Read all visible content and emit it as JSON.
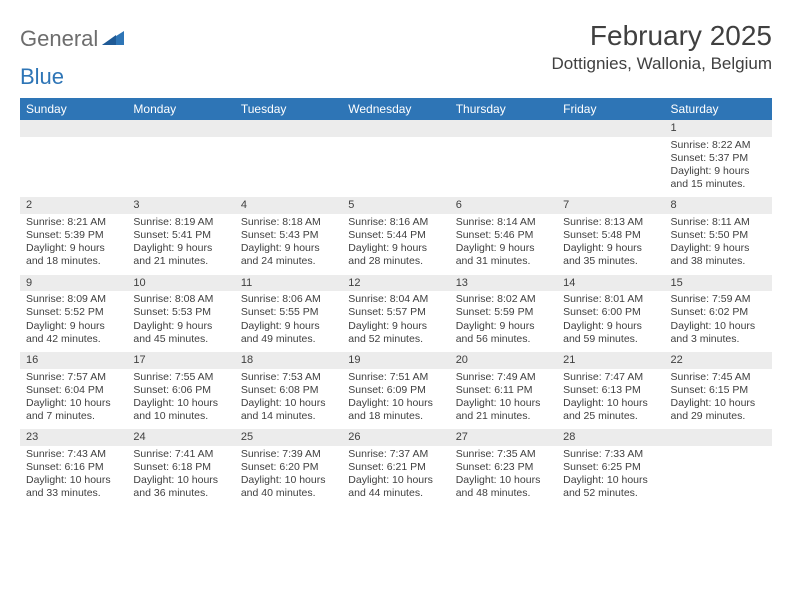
{
  "logo": {
    "general": "General",
    "blue": "Blue",
    "mark_color": "#2e75b6"
  },
  "title": "February 2025",
  "location": "Dottignies, Wallonia, Belgium",
  "colors": {
    "header_bg": "#2e75b6",
    "header_fg": "#ffffff",
    "band_bg": "#ececec",
    "text": "#404040",
    "page_bg": "#ffffff"
  },
  "daysOfWeek": [
    "Sunday",
    "Monday",
    "Tuesday",
    "Wednesday",
    "Thursday",
    "Friday",
    "Saturday"
  ],
  "weeks": [
    [
      {
        "n": "",
        "sr": "",
        "ss": "",
        "dl": ""
      },
      {
        "n": "",
        "sr": "",
        "ss": "",
        "dl": ""
      },
      {
        "n": "",
        "sr": "",
        "ss": "",
        "dl": ""
      },
      {
        "n": "",
        "sr": "",
        "ss": "",
        "dl": ""
      },
      {
        "n": "",
        "sr": "",
        "ss": "",
        "dl": ""
      },
      {
        "n": "",
        "sr": "",
        "ss": "",
        "dl": ""
      },
      {
        "n": "1",
        "sr": "8:22 AM",
        "ss": "5:37 PM",
        "dl": "9 hours and 15 minutes."
      }
    ],
    [
      {
        "n": "2",
        "sr": "8:21 AM",
        "ss": "5:39 PM",
        "dl": "9 hours and 18 minutes."
      },
      {
        "n": "3",
        "sr": "8:19 AM",
        "ss": "5:41 PM",
        "dl": "9 hours and 21 minutes."
      },
      {
        "n": "4",
        "sr": "8:18 AM",
        "ss": "5:43 PM",
        "dl": "9 hours and 24 minutes."
      },
      {
        "n": "5",
        "sr": "8:16 AM",
        "ss": "5:44 PM",
        "dl": "9 hours and 28 minutes."
      },
      {
        "n": "6",
        "sr": "8:14 AM",
        "ss": "5:46 PM",
        "dl": "9 hours and 31 minutes."
      },
      {
        "n": "7",
        "sr": "8:13 AM",
        "ss": "5:48 PM",
        "dl": "9 hours and 35 minutes."
      },
      {
        "n": "8",
        "sr": "8:11 AM",
        "ss": "5:50 PM",
        "dl": "9 hours and 38 minutes."
      }
    ],
    [
      {
        "n": "9",
        "sr": "8:09 AM",
        "ss": "5:52 PM",
        "dl": "9 hours and 42 minutes."
      },
      {
        "n": "10",
        "sr": "8:08 AM",
        "ss": "5:53 PM",
        "dl": "9 hours and 45 minutes."
      },
      {
        "n": "11",
        "sr": "8:06 AM",
        "ss": "5:55 PM",
        "dl": "9 hours and 49 minutes."
      },
      {
        "n": "12",
        "sr": "8:04 AM",
        "ss": "5:57 PM",
        "dl": "9 hours and 52 minutes."
      },
      {
        "n": "13",
        "sr": "8:02 AM",
        "ss": "5:59 PM",
        "dl": "9 hours and 56 minutes."
      },
      {
        "n": "14",
        "sr": "8:01 AM",
        "ss": "6:00 PM",
        "dl": "9 hours and 59 minutes."
      },
      {
        "n": "15",
        "sr": "7:59 AM",
        "ss": "6:02 PM",
        "dl": "10 hours and 3 minutes."
      }
    ],
    [
      {
        "n": "16",
        "sr": "7:57 AM",
        "ss": "6:04 PM",
        "dl": "10 hours and 7 minutes."
      },
      {
        "n": "17",
        "sr": "7:55 AM",
        "ss": "6:06 PM",
        "dl": "10 hours and 10 minutes."
      },
      {
        "n": "18",
        "sr": "7:53 AM",
        "ss": "6:08 PM",
        "dl": "10 hours and 14 minutes."
      },
      {
        "n": "19",
        "sr": "7:51 AM",
        "ss": "6:09 PM",
        "dl": "10 hours and 18 minutes."
      },
      {
        "n": "20",
        "sr": "7:49 AM",
        "ss": "6:11 PM",
        "dl": "10 hours and 21 minutes."
      },
      {
        "n": "21",
        "sr": "7:47 AM",
        "ss": "6:13 PM",
        "dl": "10 hours and 25 minutes."
      },
      {
        "n": "22",
        "sr": "7:45 AM",
        "ss": "6:15 PM",
        "dl": "10 hours and 29 minutes."
      }
    ],
    [
      {
        "n": "23",
        "sr": "7:43 AM",
        "ss": "6:16 PM",
        "dl": "10 hours and 33 minutes."
      },
      {
        "n": "24",
        "sr": "7:41 AM",
        "ss": "6:18 PM",
        "dl": "10 hours and 36 minutes."
      },
      {
        "n": "25",
        "sr": "7:39 AM",
        "ss": "6:20 PM",
        "dl": "10 hours and 40 minutes."
      },
      {
        "n": "26",
        "sr": "7:37 AM",
        "ss": "6:21 PM",
        "dl": "10 hours and 44 minutes."
      },
      {
        "n": "27",
        "sr": "7:35 AM",
        "ss": "6:23 PM",
        "dl": "10 hours and 48 minutes."
      },
      {
        "n": "28",
        "sr": "7:33 AM",
        "ss": "6:25 PM",
        "dl": "10 hours and 52 minutes."
      },
      {
        "n": "",
        "sr": "",
        "ss": "",
        "dl": ""
      }
    ]
  ],
  "labels": {
    "sunrise": "Sunrise:",
    "sunset": "Sunset:",
    "daylight": "Daylight:"
  }
}
